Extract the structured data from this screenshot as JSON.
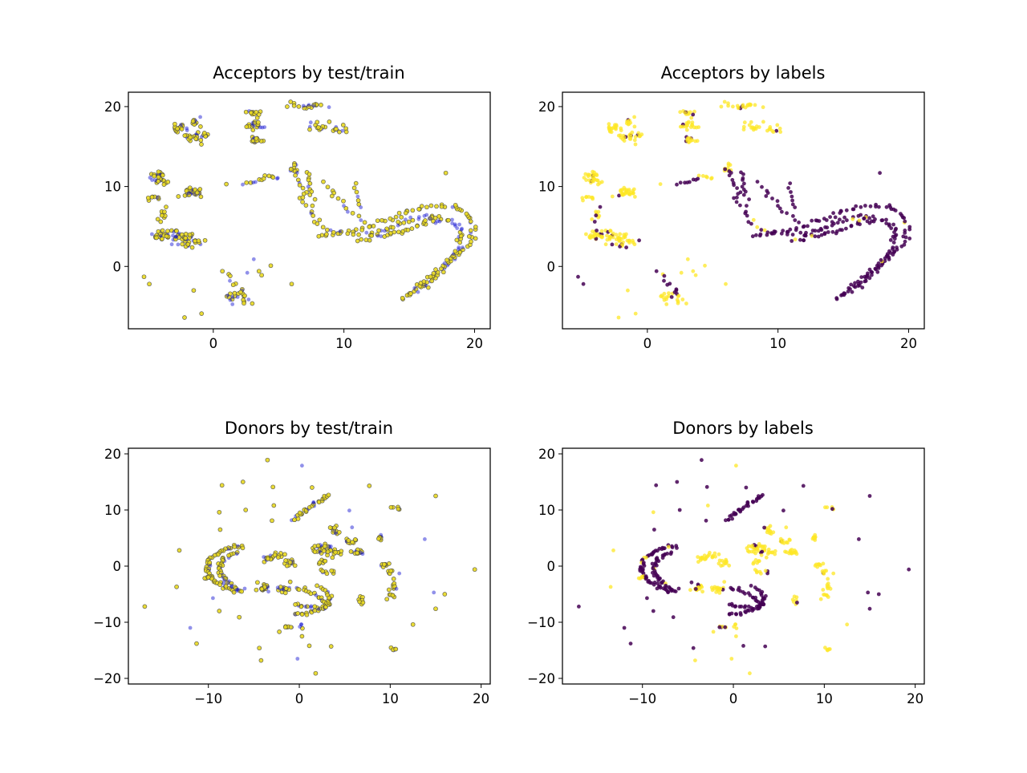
{
  "figure": {
    "background": "#ffffff",
    "colors": {
      "train_color": "#e8d820",
      "train_edge": "#444444",
      "test_color": "#0a0ad0",
      "label_yes": "#fde725",
      "label_no": "#440154"
    }
  },
  "chart_data": [
    {
      "type": "scatter",
      "title": "Acceptors by test/train",
      "coloring": "test/train",
      "xlim": [
        -6.5,
        21.2
      ],
      "ylim": [
        -7.8,
        21.8
      ],
      "xticks": [
        0,
        10,
        20
      ],
      "yticks": [
        0,
        10,
        20
      ],
      "grid": false,
      "clusters": [
        {
          "x": -4.2,
          "y": 11.0,
          "sx": 0.35,
          "sy": 0.45,
          "n": 28,
          "group": "blob"
        },
        {
          "x": -4.5,
          "y": 8.6,
          "sx": 0.25,
          "sy": 0.25,
          "n": 8,
          "group": "blob"
        },
        {
          "x": -3.8,
          "y": 6.3,
          "sx": 0.3,
          "sy": 0.5,
          "n": 10,
          "group": "blob"
        },
        {
          "x": -3.9,
          "y": 3.8,
          "sx": 0.45,
          "sy": 0.3,
          "n": 28,
          "group": "blob"
        },
        {
          "x": -2.4,
          "y": 3.6,
          "sx": 0.55,
          "sy": 0.5,
          "n": 30,
          "group": "blob"
        },
        {
          "x": -1.6,
          "y": 3.1,
          "sx": 0.4,
          "sy": 0.4,
          "n": 14,
          "group": "blob"
        },
        {
          "x": -1.6,
          "y": 9.3,
          "sx": 0.55,
          "sy": 0.3,
          "n": 28,
          "group": "blob"
        },
        {
          "x": -2.6,
          "y": 17.3,
          "sx": 0.3,
          "sy": 0.25,
          "n": 18,
          "group": "blob"
        },
        {
          "x": -1.3,
          "y": 16.2,
          "sx": 0.45,
          "sy": 0.35,
          "n": 24,
          "group": "blob"
        },
        {
          "x": -1.4,
          "y": 18.1,
          "sx": 0.25,
          "sy": 0.3,
          "n": 10,
          "group": "blob"
        },
        {
          "x": 3.2,
          "y": 19.3,
          "sx": 0.3,
          "sy": 0.3,
          "n": 12,
          "group": "blob"
        },
        {
          "x": 3.2,
          "y": 17.7,
          "sx": 0.35,
          "sy": 0.3,
          "n": 18,
          "group": "blob"
        },
        {
          "x": 3.2,
          "y": 15.8,
          "sx": 0.3,
          "sy": 0.25,
          "n": 14,
          "group": "blob"
        },
        {
          "x": 6.8,
          "y": 20.1,
          "sx": 0.8,
          "sy": 0.2,
          "n": 20,
          "group": "blob"
        },
        {
          "x": 8.2,
          "y": 17.5,
          "sx": 0.5,
          "sy": 0.35,
          "n": 14,
          "group": "blob"
        },
        {
          "x": 9.6,
          "y": 17.0,
          "sx": 0.35,
          "sy": 0.35,
          "n": 10,
          "group": "blob"
        },
        {
          "x": 6.2,
          "y": 12.3,
          "sx": 0.25,
          "sy": 0.35,
          "n": 8,
          "group": "blob"
        },
        {
          "x": 4.4,
          "y": 11.4,
          "sx": 0.3,
          "sy": 0.3,
          "n": 6,
          "group": "blob"
        },
        {
          "x": 2.0,
          "y": -4.0,
          "sx": 0.45,
          "sy": 0.35,
          "n": 20,
          "group": "blob"
        }
      ],
      "curves": [
        {
          "points": [
            [
              14.5,
              -4
            ],
            [
              16,
              -2.5
            ],
            [
              17.5,
              -0.5
            ],
            [
              18.8,
              1.5
            ],
            [
              19.8,
              3.5
            ],
            [
              19.9,
              5
            ],
            [
              19.5,
              6.5
            ],
            [
              18.5,
              7.5
            ],
            [
              17,
              7.6
            ],
            [
              15.5,
              7.2
            ],
            [
              14,
              6.2
            ],
            [
              12.5,
              5.3
            ],
            [
              11,
              4.6
            ],
            [
              9.5,
              4
            ],
            [
              8,
              3.9
            ]
          ],
          "n": 90,
          "jitter": 0.15
        },
        {
          "points": [
            [
              15,
              -3.5
            ],
            [
              16.5,
              -1.5
            ],
            [
              17.8,
              0.5
            ],
            [
              18.8,
              2.5
            ],
            [
              19,
              4.3
            ],
            [
              18.3,
              5.6
            ],
            [
              17,
              6.2
            ],
            [
              15.7,
              6.2
            ],
            [
              14.5,
              5.5
            ],
            [
              13,
              4.5
            ],
            [
              11.6,
              3.9
            ]
          ],
          "n": 80,
          "jitter": 0.15
        },
        {
          "points": [
            [
              11.2,
              3.2
            ],
            [
              12.5,
              3.6
            ],
            [
              14,
              4.2
            ],
            [
              15.6,
              5
            ],
            [
              16.8,
              6
            ],
            [
              17.3,
              5.5
            ]
          ],
          "n": 30,
          "jitter": 0.12
        },
        {
          "points": [
            [
              6.3,
              12.3
            ],
            [
              6.5,
              10.5
            ],
            [
              7,
              8.5
            ],
            [
              7.5,
              6.5
            ],
            [
              8.2,
              5
            ],
            [
              9.5,
              4.3
            ],
            [
              11,
              4
            ]
          ],
          "n": 30,
          "jitter": 0.15
        },
        {
          "points": [
            [
              7.2,
              11.8
            ],
            [
              7.3,
              10.3
            ],
            [
              7.6,
              8.6
            ]
          ],
          "n": 10,
          "jitter": 0.1
        },
        {
          "points": [
            [
              8.7,
              10.5
            ],
            [
              9.5,
              8.5
            ],
            [
              10.5,
              6.8
            ],
            [
              11.5,
              5.5
            ]
          ],
          "n": 14,
          "jitter": 0.12
        },
        {
          "points": [
            [
              10.9,
              10.2
            ],
            [
              11,
              8.7
            ],
            [
              11.2,
              7.3
            ]
          ],
          "n": 7,
          "jitter": 0.08
        },
        {
          "points": [
            [
              2.3,
              10.4
            ],
            [
              3.2,
              10.6
            ],
            [
              4.0,
              10.9
            ]
          ],
          "n": 8,
          "jitter": 0.1
        },
        {
          "points": [
            [
              1.2,
              -1
            ],
            [
              1.8,
              -2.3
            ],
            [
              2.2,
              -3.4
            ]
          ],
          "n": 8,
          "jitter": 0.15
        }
      ],
      "singles": [
        [
          -5.3,
          -1.3
        ],
        [
          -4.9,
          -2.2
        ],
        [
          -1.5,
          -3.0
        ],
        [
          -2.2,
          -6.4
        ],
        [
          -0.9,
          -5.9
        ],
        [
          2.6,
          -0.8
        ],
        [
          3.5,
          -0.6
        ],
        [
          3.7,
          -1.1
        ],
        [
          4.4,
          0.1
        ],
        [
          3.1,
          0.9
        ],
        [
          6.0,
          -2.2
        ],
        [
          17.8,
          11.7
        ],
        [
          1.0,
          10.3
        ],
        [
          0.7,
          -0.6
        ]
      ]
    },
    {
      "type": "scatter",
      "title": "Acceptors by labels",
      "coloring": "labels",
      "xlim": [
        -6.5,
        21.2
      ],
      "ylim": [
        -7.8,
        21.8
      ],
      "xticks": [
        0,
        10,
        20
      ],
      "yticks": [
        0,
        10,
        20
      ],
      "grid": false,
      "same_points_as": 0
    },
    {
      "type": "scatter",
      "title": "Donors by test/train",
      "coloring": "test/train",
      "xlim": [
        -18.8,
        21.0
      ],
      "ylim": [
        -21.0,
        21.0
      ],
      "xticks": [
        -10,
        0,
        10,
        20
      ],
      "yticks": [
        -20,
        -10,
        0,
        10,
        20
      ],
      "grid": false,
      "clusters": [
        {
          "x": -4.0,
          "y": -4.0,
          "sx": 0.35,
          "sy": 0.3,
          "n": 20,
          "group": "blob"
        },
        {
          "x": -1.7,
          "y": -4.0,
          "sx": 0.35,
          "sy": 0.3,
          "n": 16,
          "group": "blob"
        },
        {
          "x": -2.5,
          "y": 1.8,
          "sx": 0.45,
          "sy": 0.3,
          "n": 12,
          "group": "blob"
        },
        {
          "x": -1.2,
          "y": 0.8,
          "sx": 0.4,
          "sy": 0.35,
          "n": 12,
          "group": "blob"
        },
        {
          "x": -3.7,
          "y": 1.2,
          "sx": 0.3,
          "sy": 0.3,
          "n": 8,
          "group": "blob"
        },
        {
          "x": 2.3,
          "y": 3.2,
          "sx": 0.5,
          "sy": 0.5,
          "n": 20,
          "group": "blob"
        },
        {
          "x": 3.7,
          "y": 2.6,
          "sx": 0.5,
          "sy": 0.5,
          "n": 20,
          "group": "blob"
        },
        {
          "x": 4.0,
          "y": 6.4,
          "sx": 0.4,
          "sy": 0.4,
          "n": 12,
          "group": "blob"
        },
        {
          "x": 5.6,
          "y": 4.3,
          "sx": 0.4,
          "sy": 0.3,
          "n": 10,
          "group": "blob"
        },
        {
          "x": 6.4,
          "y": 2.6,
          "sx": 0.45,
          "sy": 0.35,
          "n": 14,
          "group": "blob"
        },
        {
          "x": 2.8,
          "y": -1.0,
          "sx": 0.35,
          "sy": 0.3,
          "n": 8,
          "group": "blob"
        },
        {
          "x": 2.5,
          "y": 0.7,
          "sx": 0.3,
          "sy": 0.3,
          "n": 6,
          "group": "blob"
        },
        {
          "x": 8.9,
          "y": 5.1,
          "sx": 0.12,
          "sy": 0.6,
          "n": 10,
          "group": "blob"
        },
        {
          "x": 9.3,
          "y": 0.1,
          "sx": 0.35,
          "sy": 0.3,
          "n": 8,
          "group": "blob"
        },
        {
          "x": 10.1,
          "y": -0.8,
          "sx": 0.3,
          "sy": 0.3,
          "n": 6,
          "group": "blob"
        },
        {
          "x": 10.5,
          "y": -3.2,
          "sx": 0.3,
          "sy": 0.5,
          "n": 8,
          "group": "blob"
        },
        {
          "x": 10.2,
          "y": -5.4,
          "sx": 0.3,
          "sy": 0.3,
          "n": 6,
          "group": "blob"
        },
        {
          "x": 10.5,
          "y": 10.3,
          "sx": 0.4,
          "sy": 0.2,
          "n": 6,
          "group": "blob"
        },
        {
          "x": 10.3,
          "y": -14.8,
          "sx": 0.25,
          "sy": 0.2,
          "n": 5,
          "group": "blob"
        },
        {
          "x": 6.8,
          "y": -6.0,
          "sx": 0.12,
          "sy": 0.5,
          "n": 6,
          "group": "blob"
        },
        {
          "x": -1.2,
          "y": -10.8,
          "sx": 0.4,
          "sy": 0.2,
          "n": 6,
          "group": "blob"
        },
        {
          "x": 0.5,
          "y": -10.8,
          "sx": 0.3,
          "sy": 0.2,
          "n": 4,
          "group": "blob"
        },
        {
          "x": -10.0,
          "y": -2.0,
          "sx": 0.3,
          "sy": 0.4,
          "n": 6,
          "group": "blob"
        }
      ],
      "curves": [
        {
          "points": [
            [
              -6.2,
              3.6
            ],
            [
              -7.5,
              3.4
            ],
            [
              -8.8,
              2.6
            ],
            [
              -9.8,
              1.2
            ],
            [
              -10.2,
              -0.4
            ],
            [
              -9.8,
              -2
            ],
            [
              -8.8,
              -3.3
            ],
            [
              -7.6,
              -4.1
            ],
            [
              -6.4,
              -4.6
            ]
          ],
          "n": 60,
          "jitter": 0.15
        },
        {
          "points": [
            [
              -6.8,
              2.4
            ],
            [
              -7.8,
              1.9
            ],
            [
              -8.5,
              0.8
            ],
            [
              -8.8,
              -0.6
            ],
            [
              -8.4,
              -2
            ],
            [
              -7.6,
              -3.2
            ],
            [
              -6.8,
              -4.2
            ]
          ],
          "n": 40,
          "jitter": 0.15
        },
        {
          "points": [
            [
              -0.7,
              8.0
            ],
            [
              0.3,
              9.6
            ],
            [
              1.6,
              11.0
            ],
            [
              3.0,
              12.3
            ],
            [
              3.2,
              12.6
            ]
          ],
          "n": 30,
          "jitter": 0.15
        },
        {
          "points": [
            [
              -0.3,
              -3.8
            ],
            [
              1.3,
              -4.8
            ],
            [
              2.5,
              -5.8
            ],
            [
              3.2,
              -6.8
            ],
            [
              2.3,
              -7.5
            ],
            [
              0.5,
              -7.2
            ],
            [
              -0.6,
              -6.8
            ]
          ],
          "n": 34,
          "jitter": 0.15
        },
        {
          "points": [
            [
              -0.5,
              -8.5
            ],
            [
              0.8,
              -8.5
            ],
            [
              2.0,
              -8.0
            ],
            [
              3.0,
              -7.0
            ],
            [
              3.6,
              -5.5
            ]
          ],
          "n": 24,
          "jitter": 0.12
        },
        {
          "points": [
            [
              2.0,
              -3.6
            ],
            [
              3.0,
              -4.2
            ],
            [
              3.3,
              -5.6
            ]
          ],
          "n": 8,
          "jitter": 0.1
        }
      ],
      "singles": [
        [
          -17.0,
          -7.2
        ],
        [
          -13.2,
          2.8
        ],
        [
          -13.5,
          -3.7
        ],
        [
          -12.0,
          -11.0
        ],
        [
          -11.3,
          -13.8
        ],
        [
          -10.0,
          -2.0
        ],
        [
          -9.5,
          -5.7
        ],
        [
          -8.8,
          -8.0
        ],
        [
          -8.5,
          14.4
        ],
        [
          -8.8,
          9.6
        ],
        [
          -8.7,
          6.5
        ],
        [
          -6.6,
          -9.1
        ],
        [
          -6.2,
          15.0
        ],
        [
          -6.0,
          -4.0
        ],
        [
          -5.9,
          10.0
        ],
        [
          -4.6,
          -2.9
        ],
        [
          -4.4,
          -14.6
        ],
        [
          -4.2,
          -16.8
        ],
        [
          -3.5,
          18.9
        ],
        [
          -3.0,
          8.1
        ],
        [
          -2.9,
          14.1
        ],
        [
          -2.8,
          10.8
        ],
        [
          -2.2,
          -11.7
        ],
        [
          -1.0,
          -2.8
        ],
        [
          0.3,
          -12.5
        ],
        [
          -0.2,
          -16.5
        ],
        [
          0.3,
          17.9
        ],
        [
          1.8,
          -19.1
        ],
        [
          1.1,
          -14.2
        ],
        [
          1.4,
          14.0
        ],
        [
          3.5,
          -14.3
        ],
        [
          5.5,
          9.9
        ],
        [
          5.8,
          6.9
        ],
        [
          7.0,
          -6.5
        ],
        [
          7.7,
          14.3
        ],
        [
          11.0,
          -1.3
        ],
        [
          12.5,
          -10.4
        ],
        [
          13.8,
          4.8
        ],
        [
          14.8,
          -4.7
        ],
        [
          15.0,
          12.5
        ],
        [
          15.0,
          -7.6
        ],
        [
          16.0,
          -5.0
        ],
        [
          19.3,
          -0.6
        ]
      ]
    },
    {
      "type": "scatter",
      "title": "Donors by labels",
      "coloring": "labels",
      "xlim": [
        -18.8,
        21.0
      ],
      "ylim": [
        -21.0,
        21.0
      ],
      "xticks": [
        -10,
        0,
        10,
        20
      ],
      "yticks": [
        -20,
        -10,
        0,
        10,
        20
      ],
      "grid": false,
      "same_points_as": 2
    }
  ]
}
